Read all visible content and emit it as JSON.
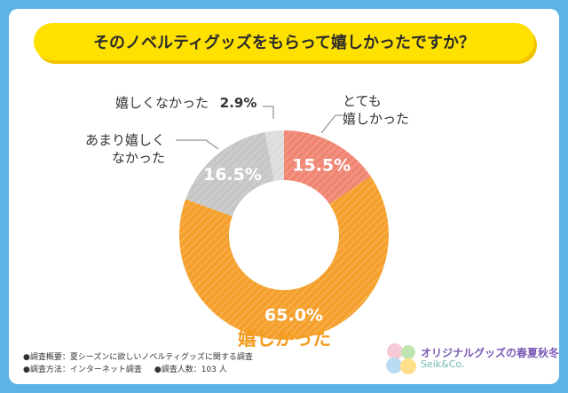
{
  "title": "そのノベルティグッズをもらって嬉しかったですか？",
  "chart_data": {
    "type": "pie",
    "title": "そのノベルティグッズをもらって嬉しかったですか？",
    "slices": [
      {
        "label": "とても嬉しかった",
        "value": 15.5,
        "display": "15.5%",
        "color": "#f08572"
      },
      {
        "label": "嬉しかった",
        "value": 65.0,
        "display": "65.0%",
        "color": "#f5a02c"
      },
      {
        "label": "あまり嬉しくなかった",
        "value": 16.5,
        "display": "16.5%",
        "color": "#c6c6c6"
      },
      {
        "label": "嬉しくなかった",
        "value": 2.9,
        "display": "2.9%",
        "color": "#dcdcdc"
      }
    ],
    "legend": "callouts"
  },
  "labels": {
    "very_happy_line1": "とても",
    "very_happy_line2": "嬉しかった",
    "happy": "嬉しかった",
    "not_very_line1": "あまり嬉しく",
    "not_very_line2": "なかった",
    "not_happy": "嬉しくなかった",
    "not_happy_pct": "2.9%"
  },
  "notes": {
    "overview": "●調査概要：夏シーズンに欲しいノベルティグッズに関する調査",
    "method": "●調査方法：インターネット調査",
    "count": "●調査人数：103 人"
  },
  "brand": {
    "name": "オリジナルグッズの春夏秋冬",
    "sub": "Seik&Co."
  }
}
